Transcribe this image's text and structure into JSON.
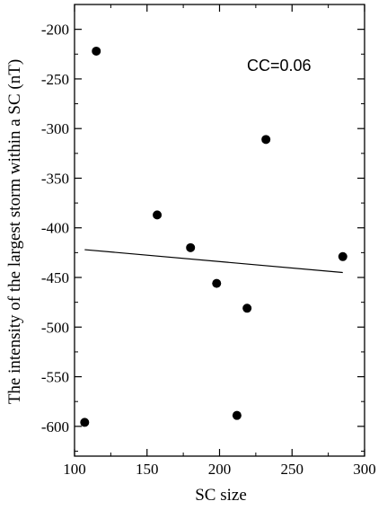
{
  "chart_data": {
    "type": "scatter",
    "xlabel": "SC size",
    "ylabel": "The intensity of the largest storm within a SC (nT)",
    "annotation": "CC=0.06",
    "xlim": [
      100,
      300
    ],
    "ylim": [
      -630,
      -175
    ],
    "xticks": [
      100,
      150,
      200,
      250,
      300
    ],
    "yticks": [
      -200,
      -250,
      -300,
      -350,
      -400,
      -450,
      -500,
      -550,
      -600
    ],
    "points": [
      {
        "x": 115,
        "y": -222
      },
      {
        "x": 107,
        "y": -596
      },
      {
        "x": 157,
        "y": -387
      },
      {
        "x": 180,
        "y": -420
      },
      {
        "x": 198,
        "y": -456
      },
      {
        "x": 212,
        "y": -589
      },
      {
        "x": 219,
        "y": -481
      },
      {
        "x": 232,
        "y": -311
      },
      {
        "x": 285,
        "y": -429
      }
    ],
    "fit_line": [
      {
        "x": 107,
        "y": -422
      },
      {
        "x": 285,
        "y": -445
      }
    ],
    "grid": false,
    "colors": {
      "marker": "#000000",
      "line": "#000000"
    }
  }
}
